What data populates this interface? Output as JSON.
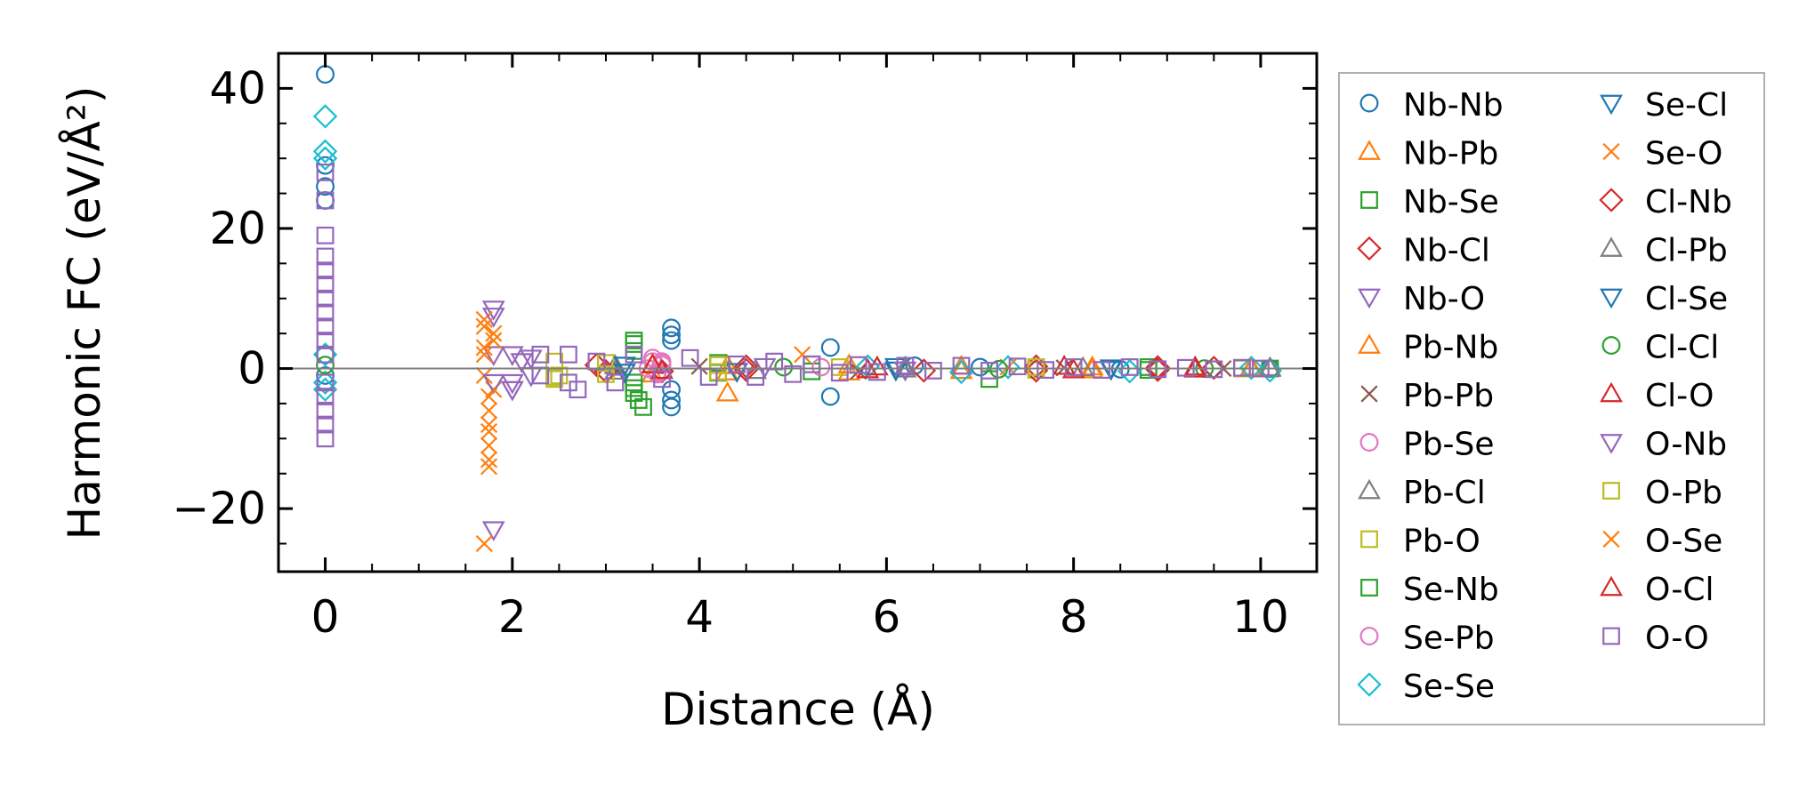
{
  "chart_data": {
    "type": "scatter",
    "xlabel": "Distance (Å)",
    "ylabel": "Harmonic FC (eV/Å²)",
    "xlim": [
      -0.5,
      10.6
    ],
    "ylim": [
      -29,
      45
    ],
    "xticks": [
      0,
      2,
      4,
      6,
      8,
      10
    ],
    "yticks": [
      40,
      20,
      0,
      -20
    ],
    "ytick_labels": [
      "40",
      "20",
      "0",
      "−20"
    ],
    "zero_line": true,
    "legend": {
      "placement": "outside-right",
      "columns": 2
    },
    "series": [
      {
        "name": "Nb-Nb",
        "marker": "circle",
        "color": "#1f77b4",
        "points": [
          [
            0,
            42
          ],
          [
            0,
            29
          ],
          [
            0,
            26
          ],
          [
            0,
            24
          ],
          [
            0,
            2
          ],
          [
            0,
            -1
          ],
          [
            3.7,
            5.8
          ],
          [
            3.7,
            4.8
          ],
          [
            3.7,
            4
          ],
          [
            3.7,
            -3
          ],
          [
            3.7,
            -4.5
          ],
          [
            3.7,
            -5.5
          ],
          [
            5.4,
            3
          ],
          [
            5.4,
            -4
          ],
          [
            6.3,
            0.4
          ],
          [
            7,
            0.2
          ],
          [
            8.5,
            -0.1
          ],
          [
            10.1,
            0
          ]
        ]
      },
      {
        "name": "Nb-Pb",
        "marker": "triangle-up",
        "color": "#ff7f0e",
        "points": [
          [
            3.5,
            -0.8
          ],
          [
            4.3,
            -3.5
          ],
          [
            4.3,
            0.4
          ],
          [
            5.6,
            0.5
          ],
          [
            6.8,
            -0.3
          ],
          [
            8.2,
            0.2
          ],
          [
            9.9,
            0
          ]
        ]
      },
      {
        "name": "Nb-Se",
        "marker": "square",
        "color": "#2ca02c",
        "points": [
          [
            3.3,
            4
          ],
          [
            3.3,
            2.5
          ],
          [
            3.3,
            -2
          ],
          [
            3.3,
            -3.5
          ],
          [
            3.4,
            -5.5
          ],
          [
            4.2,
            0.8
          ],
          [
            5.2,
            0.6
          ],
          [
            7.1,
            -1.5
          ],
          [
            8.8,
            0.2
          ],
          [
            10.1,
            0
          ]
        ]
      },
      {
        "name": "Nb-Cl",
        "marker": "diamond",
        "color": "#d62728",
        "points": [
          [
            2.9,
            0.5
          ],
          [
            3.6,
            -0.4
          ],
          [
            4.5,
            0.3
          ],
          [
            6.4,
            -0.3
          ],
          [
            7.6,
            0.3
          ],
          [
            8.9,
            -0.2
          ],
          [
            9.5,
            0.1
          ]
        ]
      },
      {
        "name": "Nb-O",
        "marker": "triangle-down",
        "color": "#9467bd",
        "points": [
          [
            1.8,
            8.5
          ],
          [
            1.8,
            -23
          ],
          [
            1.8,
            2
          ],
          [
            2,
            2
          ],
          [
            2,
            -2
          ],
          [
            2,
            -3
          ],
          [
            2.1,
            1
          ],
          [
            2.2,
            -1
          ]
        ]
      },
      {
        "name": "Pb-Nb",
        "marker": "triangle-up",
        "color": "#ff7f0e",
        "points": [
          [
            3.5,
            0.6
          ],
          [
            4.3,
            -0.5
          ],
          [
            5.6,
            -0.5
          ],
          [
            6.8,
            0.3
          ],
          [
            8.2,
            -0.2
          ],
          [
            9.9,
            0.2
          ]
        ]
      },
      {
        "name": "Pb-Pb",
        "marker": "x",
        "color": "#8c564b",
        "points": [
          [
            4,
            0.3
          ],
          [
            5.7,
            -0.4
          ],
          [
            7.9,
            0.1
          ],
          [
            9.6,
            0
          ]
        ]
      },
      {
        "name": "Pb-Se",
        "marker": "circle",
        "color": "#e377c2",
        "points": [
          [
            3.5,
            1.5
          ],
          [
            3.6,
            0.8
          ],
          [
            3.55,
            -0.5
          ],
          [
            3.6,
            1
          ],
          [
            3.45,
            0
          ]
        ]
      },
      {
        "name": "Pb-Cl",
        "marker": "triangle-up",
        "color": "#7f7f7f",
        "points": [
          [
            3.1,
            0.4
          ],
          [
            4.6,
            -0.3
          ],
          [
            6.2,
            0.2
          ],
          [
            8.1,
            0.1
          ],
          [
            10.1,
            0
          ]
        ]
      },
      {
        "name": "Pb-O",
        "marker": "square",
        "color": "#bcbd22",
        "points": [
          [
            2.45,
            1
          ],
          [
            2.45,
            -1.5
          ],
          [
            2.5,
            -1
          ],
          [
            3,
            0.8
          ],
          [
            4.2,
            0.5
          ],
          [
            5.5,
            0.2
          ],
          [
            7.6,
            -0.2
          ],
          [
            9.8,
            0
          ]
        ]
      },
      {
        "name": "Se-Nb",
        "marker": "square",
        "color": "#2ca02c",
        "points": [
          [
            3.3,
            3.5
          ],
          [
            3.3,
            -2.8
          ],
          [
            3.35,
            -4.5
          ],
          [
            4.2,
            -0.6
          ],
          [
            5.2,
            -0.4
          ],
          [
            8.8,
            -0.2
          ]
        ]
      },
      {
        "name": "Se-Pb",
        "marker": "circle",
        "color": "#e377c2",
        "points": [
          [
            3.5,
            1
          ],
          [
            3.55,
            -0.8
          ],
          [
            3.6,
            0.5
          ],
          [
            5.3,
            0.2
          ]
        ]
      },
      {
        "name": "Se-Se",
        "marker": "diamond",
        "color": "#17becf",
        "points": [
          [
            0,
            36
          ],
          [
            0,
            31
          ],
          [
            0,
            30
          ],
          [
            0,
            2
          ],
          [
            0,
            -2
          ],
          [
            0,
            -3
          ],
          [
            5.8,
            0.3
          ],
          [
            6.8,
            -0.5
          ],
          [
            7.3,
            0.2
          ],
          [
            8.6,
            -0.4
          ],
          [
            9.9,
            0.1
          ],
          [
            10.1,
            -0.3
          ]
        ]
      },
      {
        "name": "Se-Cl",
        "marker": "triangle-down",
        "color": "#1f77b4",
        "points": [
          [
            3.2,
            0.5
          ],
          [
            4.4,
            -0.4
          ],
          [
            6.1,
            0.3
          ],
          [
            8.4,
            -0.1
          ]
        ]
      },
      {
        "name": "Se-O",
        "marker": "x",
        "color": "#ff7f0e",
        "points": [
          [
            1.7,
            7
          ],
          [
            1.7,
            3
          ],
          [
            1.7,
            -1
          ],
          [
            1.75,
            -6
          ],
          [
            1.75,
            -9
          ],
          [
            1.75,
            -13
          ],
          [
            1.7,
            -25
          ],
          [
            1.8,
            5
          ],
          [
            1.8,
            -3
          ],
          [
            5.1,
            2
          ],
          [
            7.3,
            0.2
          ]
        ]
      },
      {
        "name": "Cl-Nb",
        "marker": "diamond",
        "color": "#d62728",
        "points": [
          [
            3,
            -0.4
          ],
          [
            4.5,
            -0.2
          ],
          [
            7.6,
            -0.3
          ],
          [
            8.9,
            0.2
          ]
        ]
      },
      {
        "name": "Cl-Pb",
        "marker": "triangle-up",
        "color": "#7f7f7f",
        "points": [
          [
            3.1,
            -0.4
          ],
          [
            6.2,
            -0.1
          ],
          [
            10.1,
            0.1
          ]
        ]
      },
      {
        "name": "Cl-Se",
        "marker": "triangle-down",
        "color": "#1f77b4",
        "points": [
          [
            3.2,
            -0.5
          ],
          [
            6.1,
            -0.2
          ],
          [
            8.4,
            0.1
          ]
        ]
      },
      {
        "name": "Cl-Cl",
        "marker": "circle",
        "color": "#2ca02c",
        "points": [
          [
            0,
            0.5
          ],
          [
            4.9,
            0.2
          ],
          [
            7.2,
            -0.1
          ],
          [
            9.4,
            0
          ]
        ]
      },
      {
        "name": "Cl-O",
        "marker": "triangle-up",
        "color": "#d62728",
        "points": [
          [
            3.5,
            0.5
          ],
          [
            5.8,
            -0.2
          ],
          [
            7.9,
            0.3
          ],
          [
            9.3,
            0.2
          ]
        ]
      },
      {
        "name": "O-Nb",
        "marker": "triangle-down",
        "color": "#9467bd",
        "points": [
          [
            1.8,
            7.5
          ],
          [
            1.8,
            -2
          ],
          [
            2,
            -3
          ],
          [
            2.2,
            1.5
          ],
          [
            4.7,
            0.3
          ],
          [
            6.2,
            -0.2
          ]
        ]
      },
      {
        "name": "O-Pb",
        "marker": "square",
        "color": "#bcbd22",
        "points": [
          [
            2.45,
            -1.2
          ],
          [
            3,
            -0.8
          ],
          [
            4.2,
            -0.5
          ],
          [
            7.6,
            0.2
          ],
          [
            9.8,
            0.1
          ]
        ]
      },
      {
        "name": "O-Se",
        "marker": "x",
        "color": "#ff7f0e",
        "points": [
          [
            1.7,
            6
          ],
          [
            1.7,
            2
          ],
          [
            1.75,
            -4
          ],
          [
            1.75,
            -8
          ],
          [
            1.75,
            -11
          ],
          [
            1.75,
            -14
          ],
          [
            1.8,
            4
          ]
        ]
      },
      {
        "name": "O-Cl",
        "marker": "triangle-up",
        "color": "#d62728",
        "points": [
          [
            3.6,
            -0.3
          ],
          [
            5.9,
            0.2
          ],
          [
            8,
            -0.2
          ],
          [
            9.3,
            -0.1
          ]
        ]
      },
      {
        "name": "O-O",
        "marker": "square",
        "color": "#9467bd",
        "points": [
          [
            0,
            28
          ],
          [
            0,
            24
          ],
          [
            0,
            19
          ],
          [
            0,
            16
          ],
          [
            0,
            14
          ],
          [
            0,
            12
          ],
          [
            0,
            10
          ],
          [
            0,
            8
          ],
          [
            0,
            6
          ],
          [
            0,
            4
          ],
          [
            0,
            2
          ],
          [
            0,
            -2
          ],
          [
            0,
            -4
          ],
          [
            0,
            -6
          ],
          [
            0,
            -8
          ],
          [
            0,
            -10
          ],
          [
            2.3,
            2
          ],
          [
            2.3,
            -1
          ],
          [
            2.6,
            2
          ],
          [
            2.6,
            -2
          ],
          [
            2.7,
            -3
          ],
          [
            2.9,
            1
          ],
          [
            3.1,
            -2
          ],
          [
            3.3,
            2
          ],
          [
            3.6,
            -1.5
          ],
          [
            3.9,
            1.5
          ],
          [
            4.1,
            -1.2
          ],
          [
            4.4,
            0.6
          ],
          [
            4.6,
            -1.2
          ],
          [
            4.8,
            1
          ],
          [
            5,
            -0.8
          ],
          [
            5.2,
            0.6
          ],
          [
            5.5,
            -0.6
          ],
          [
            5.7,
            0.5
          ],
          [
            5.9,
            -0.5
          ],
          [
            6.2,
            0.4
          ],
          [
            6.5,
            -0.3
          ],
          [
            6.8,
            0.4
          ],
          [
            7.1,
            -0.3
          ],
          [
            7.4,
            0.3
          ],
          [
            7.7,
            -0.2
          ],
          [
            8,
            0.2
          ],
          [
            8.3,
            -0.2
          ],
          [
            8.6,
            0.2
          ],
          [
            8.9,
            -0.1
          ],
          [
            9.2,
            0.1
          ],
          [
            9.5,
            -0.1
          ],
          [
            9.8,
            0.1
          ],
          [
            10,
            0
          ]
        ]
      }
    ]
  }
}
